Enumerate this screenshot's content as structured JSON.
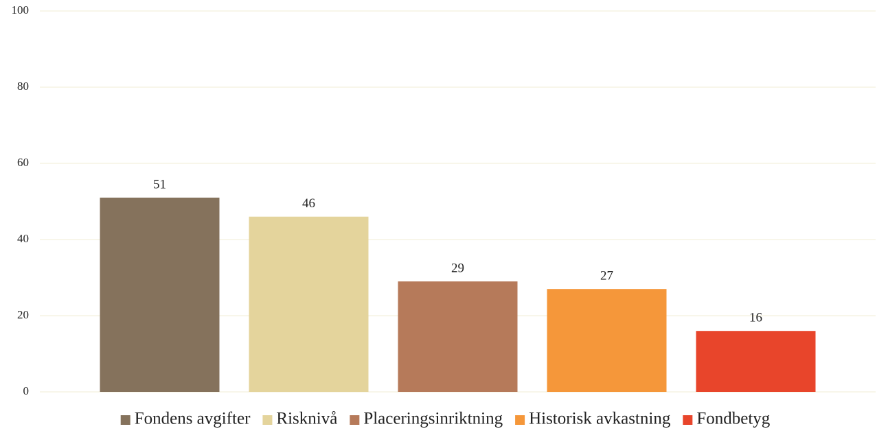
{
  "chart_data": {
    "type": "bar",
    "series": [
      {
        "name": "Fondens avgifter",
        "color": "#85725c",
        "values": [
          51
        ]
      },
      {
        "name": "Risknivå",
        "color": "#e4d49c",
        "values": [
          46
        ]
      },
      {
        "name": "Placeringsinriktning",
        "color": "#b67a5a",
        "values": [
          29
        ]
      },
      {
        "name": "Historisk avkastning",
        "color": "#f5973a",
        "values": [
          27
        ]
      },
      {
        "name": "Fondbetyg",
        "color": "#e8452b",
        "values": [
          16
        ]
      }
    ],
    "ylim": [
      0,
      100
    ],
    "yticks": [
      0,
      20,
      40,
      60,
      80,
      100
    ],
    "grid": true,
    "legend": "bottom"
  }
}
